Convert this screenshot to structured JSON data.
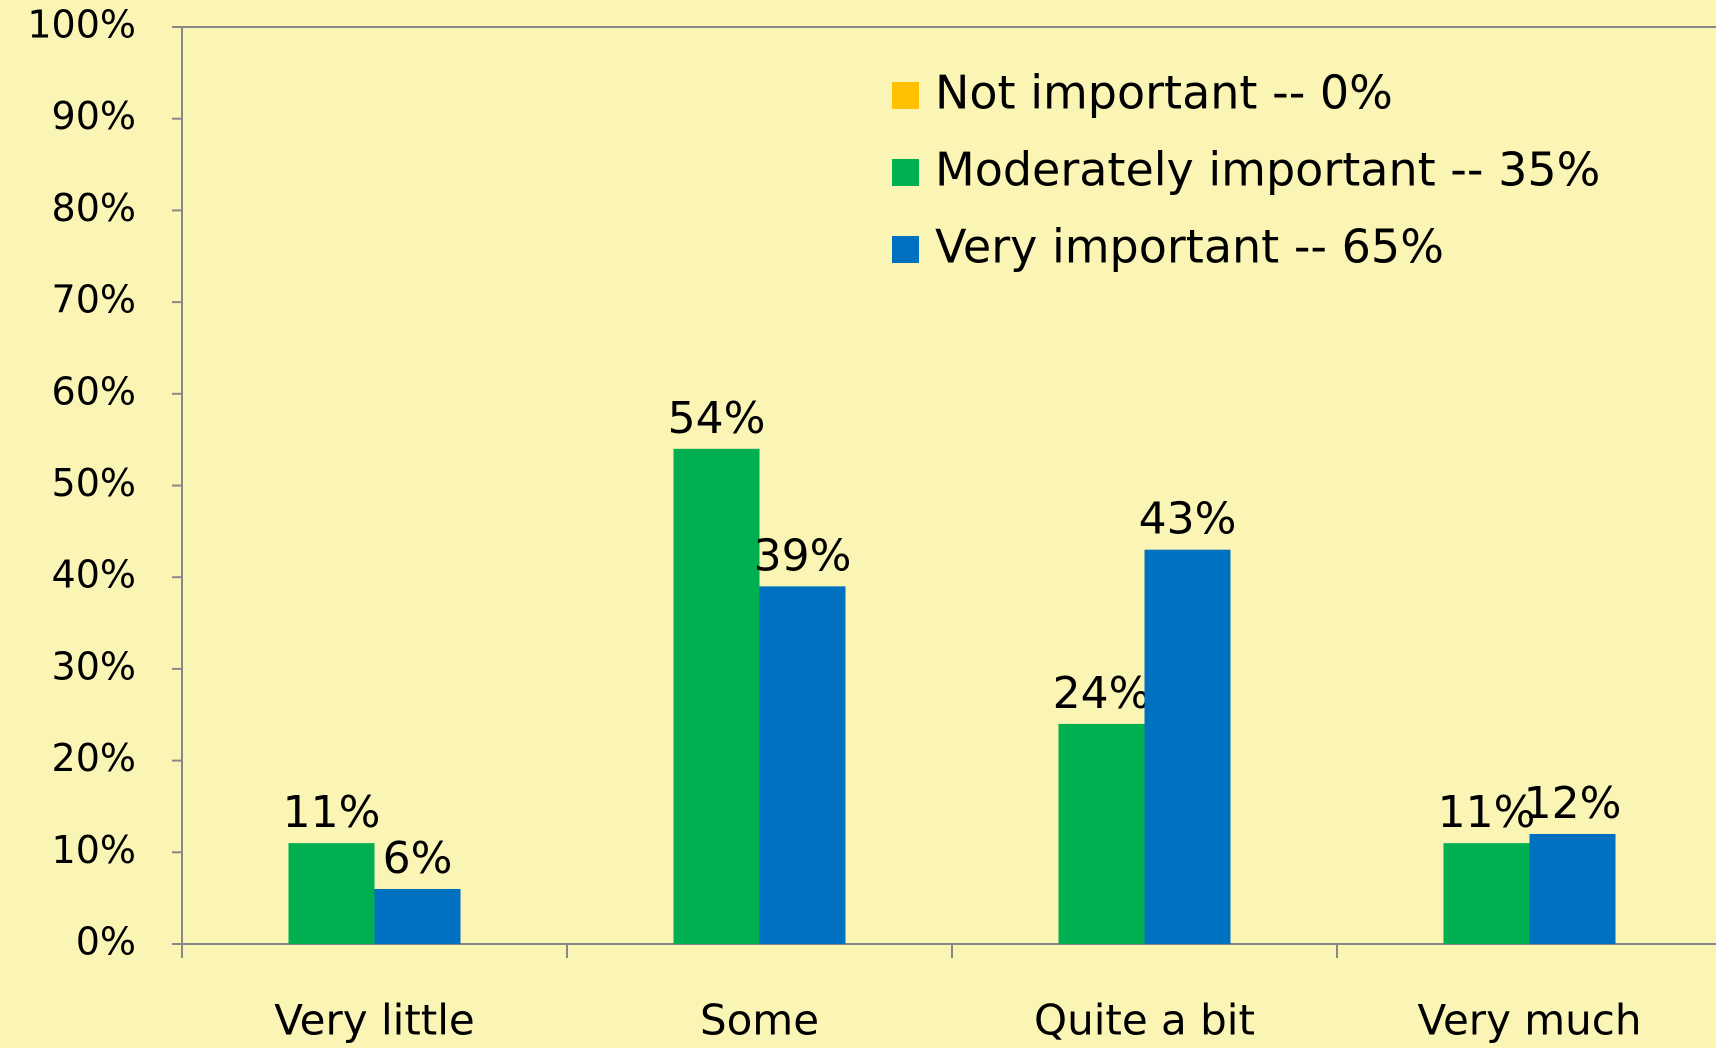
{
  "chart_data": {
    "type": "bar",
    "categories": [
      "Very little",
      "Some",
      "Quite a bit",
      "Very much"
    ],
    "series": [
      {
        "name": "Not important -- 0%",
        "color": "#ffc000",
        "values": [
          null,
          null,
          null,
          null
        ]
      },
      {
        "name": "Moderately important -- 35%",
        "color": "#00b050",
        "values": [
          11,
          54,
          24,
          11
        ],
        "value_labels": [
          "11%",
          "54%",
          "24%",
          "11%"
        ]
      },
      {
        "name": "Very important -- 65%",
        "color": "#0070c0",
        "values": [
          6,
          39,
          43,
          12
        ],
        "value_labels": [
          "6%",
          "39%",
          "43%",
          "12%"
        ]
      }
    ],
    "ylim": [
      0,
      100
    ],
    "yticks": [
      {
        "value": 0,
        "label": "0%"
      },
      {
        "value": 10,
        "label": "10%"
      },
      {
        "value": 20,
        "label": "20%"
      },
      {
        "value": 30,
        "label": "30%"
      },
      {
        "value": 40,
        "label": "40%"
      },
      {
        "value": 50,
        "label": "50%"
      },
      {
        "value": 60,
        "label": "60%"
      },
      {
        "value": 70,
        "label": "70%"
      },
      {
        "value": 80,
        "label": "80%"
      },
      {
        "value": 90,
        "label": "90%"
      },
      {
        "value": 100,
        "label": "100%"
      }
    ],
    "grid": false,
    "legend": "top-right"
  }
}
